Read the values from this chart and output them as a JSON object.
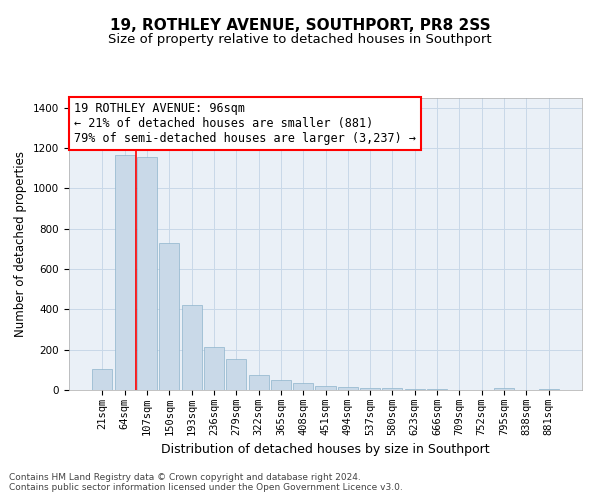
{
  "title": "19, ROTHLEY AVENUE, SOUTHPORT, PR8 2SS",
  "subtitle": "Size of property relative to detached houses in Southport",
  "xlabel": "Distribution of detached houses by size in Southport",
  "ylabel": "Number of detached properties",
  "bar_labels": [
    "21sqm",
    "64sqm",
    "107sqm",
    "150sqm",
    "193sqm",
    "236sqm",
    "279sqm",
    "322sqm",
    "365sqm",
    "408sqm",
    "451sqm",
    "494sqm",
    "537sqm",
    "580sqm",
    "623sqm",
    "666sqm",
    "709sqm",
    "752sqm",
    "795sqm",
    "838sqm",
    "881sqm"
  ],
  "bar_values": [
    105,
    1165,
    1155,
    730,
    420,
    215,
    155,
    75,
    50,
    35,
    20,
    14,
    10,
    8,
    5,
    3,
    2,
    1,
    8,
    1,
    5
  ],
  "bar_color": "#c9d9e8",
  "bar_edge_color": "#8eb4cc",
  "grid_color": "#c8d8e8",
  "bg_color": "#eaf0f7",
  "annotation_line1": "19 ROTHLEY AVENUE: 96sqm",
  "annotation_line2": "← 21% of detached houses are smaller (881)",
  "annotation_line3": "79% of semi-detached houses are larger (3,237) →",
  "annotation_box_color": "white",
  "annotation_box_edge": "red",
  "vline_color": "red",
  "vline_x": 1.5,
  "ylim": [
    0,
    1450
  ],
  "yticks": [
    0,
    200,
    400,
    600,
    800,
    1000,
    1200,
    1400
  ],
  "footer": "Contains HM Land Registry data © Crown copyright and database right 2024.\nContains public sector information licensed under the Open Government Licence v3.0.",
  "title_fontsize": 11,
  "subtitle_fontsize": 9.5,
  "xlabel_fontsize": 9,
  "ylabel_fontsize": 8.5,
  "tick_fontsize": 7.5,
  "annotation_fontsize": 8.5,
  "footer_fontsize": 6.5
}
